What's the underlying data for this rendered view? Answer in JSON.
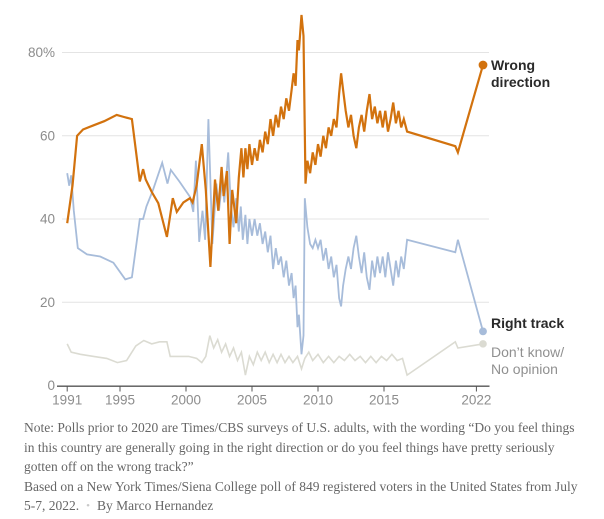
{
  "chart_data": {
    "type": "line",
    "grid": "horizontal",
    "legend_position": "right-end-labels",
    "x_axis": {
      "range": [
        1990.2,
        2023
      ],
      "ticks": [
        1991,
        1995,
        2000,
        2005,
        2010,
        2015,
        2022
      ],
      "tick_labels": [
        "1991",
        "1995",
        "2000",
        "2005",
        "2010",
        "2015",
        "2022"
      ]
    },
    "y_axis": {
      "unit": "%",
      "range": [
        0,
        90
      ],
      "ticks": [
        0,
        20,
        40,
        60,
        80
      ],
      "tick_labels": [
        "0",
        "20",
        "40",
        "60",
        "80%"
      ]
    },
    "series": [
      {
        "name": "Don't know/No opinion",
        "color": "#dbdbd2",
        "end_value": 10,
        "points": [
          [
            1991.0,
            10
          ],
          [
            1991.3,
            8
          ],
          [
            1992.0,
            7.5
          ],
          [
            1993.0,
            7
          ],
          [
            1994.0,
            6.5
          ],
          [
            1994.8,
            5.5
          ],
          [
            1995.5,
            6
          ],
          [
            1996.2,
            9.5
          ],
          [
            1996.8,
            10.8
          ],
          [
            1997.4,
            10
          ],
          [
            1998.0,
            10.5
          ],
          [
            1998.55,
            10.5
          ],
          [
            1998.8,
            7
          ],
          [
            1999.5,
            7
          ],
          [
            2000.2,
            7
          ],
          [
            2000.8,
            6.5
          ],
          [
            2001.2,
            5.5
          ],
          [
            2001.5,
            7
          ],
          [
            2001.8,
            12
          ],
          [
            2002.1,
            9
          ],
          [
            2002.4,
            11
          ],
          [
            2002.7,
            8
          ],
          [
            2003.0,
            10
          ],
          [
            2003.3,
            7
          ],
          [
            2003.6,
            9
          ],
          [
            2003.9,
            6
          ],
          [
            2004.2,
            8
          ],
          [
            2004.5,
            2.5
          ],
          [
            2004.8,
            7
          ],
          [
            2005.1,
            5
          ],
          [
            2005.4,
            8
          ],
          [
            2005.7,
            6
          ],
          [
            2006.0,
            8
          ],
          [
            2006.3,
            5.5
          ],
          [
            2006.6,
            7.5
          ],
          [
            2006.9,
            5.5
          ],
          [
            2007.2,
            7.5
          ],
          [
            2007.5,
            5.5
          ],
          [
            2007.8,
            7
          ],
          [
            2008.1,
            5.5
          ],
          [
            2008.45,
            7
          ],
          [
            2008.75,
            4
          ],
          [
            2009.0,
            6.5
          ],
          [
            2009.3,
            8
          ],
          [
            2009.6,
            6
          ],
          [
            2010.0,
            7.5
          ],
          [
            2010.4,
            5.5
          ],
          [
            2010.8,
            7
          ],
          [
            2011.2,
            5.5
          ],
          [
            2011.6,
            7
          ],
          [
            2012.0,
            6
          ],
          [
            2012.4,
            7.5
          ],
          [
            2012.8,
            6
          ],
          [
            2013.2,
            7
          ],
          [
            2013.6,
            5.5
          ],
          [
            2014.0,
            7
          ],
          [
            2014.4,
            5.5
          ],
          [
            2014.8,
            7
          ],
          [
            2015.2,
            6
          ],
          [
            2015.6,
            7.5
          ],
          [
            2016.0,
            6
          ],
          [
            2016.4,
            6.5
          ],
          [
            2016.75,
            2.5
          ],
          [
            2020.4,
            10.5
          ],
          [
            2020.6,
            9
          ],
          [
            2022.5,
            10
          ]
        ]
      },
      {
        "name": "Right track",
        "color": "#a7bcda",
        "end_value": 13,
        "points": [
          [
            1991.0,
            51
          ],
          [
            1991.15,
            48
          ],
          [
            1991.3,
            50.5
          ],
          [
            1991.5,
            42
          ],
          [
            1991.8,
            33
          ],
          [
            1992.5,
            31.5
          ],
          [
            1993.5,
            31
          ],
          [
            1994.5,
            29.5
          ],
          [
            1995.4,
            25.5
          ],
          [
            1995.9,
            26
          ],
          [
            1996.5,
            40
          ],
          [
            1996.75,
            40
          ],
          [
            1997.0,
            43
          ],
          [
            1997.5,
            47
          ],
          [
            1998.2,
            53.5
          ],
          [
            1998.6,
            48.5
          ],
          [
            1998.85,
            51.8
          ],
          [
            1999.5,
            49
          ],
          [
            2000.3,
            45.3
          ],
          [
            2000.55,
            41.7
          ],
          [
            2000.75,
            54
          ],
          [
            2001.0,
            34.5
          ],
          [
            2001.25,
            42
          ],
          [
            2001.45,
            35
          ],
          [
            2001.7,
            64
          ],
          [
            2002.0,
            34
          ],
          [
            2002.3,
            48.5
          ],
          [
            2002.5,
            42
          ],
          [
            2002.75,
            49.5
          ],
          [
            2002.9,
            44
          ],
          [
            2003.2,
            56
          ],
          [
            2003.4,
            43
          ],
          [
            2003.6,
            38
          ],
          [
            2003.8,
            45
          ],
          [
            2004.0,
            37
          ],
          [
            2004.15,
            43
          ],
          [
            2004.3,
            35
          ],
          [
            2004.5,
            41
          ],
          [
            2004.65,
            34
          ],
          [
            2004.8,
            40
          ],
          [
            2005.0,
            36
          ],
          [
            2005.2,
            40
          ],
          [
            2005.4,
            36
          ],
          [
            2005.6,
            39
          ],
          [
            2005.8,
            34
          ],
          [
            2006.0,
            37
          ],
          [
            2006.2,
            32
          ],
          [
            2006.4,
            36
          ],
          [
            2006.6,
            28
          ],
          [
            2006.8,
            33
          ],
          [
            2007.0,
            29
          ],
          [
            2007.2,
            31
          ],
          [
            2007.4,
            26
          ],
          [
            2007.6,
            30
          ],
          [
            2007.8,
            24
          ],
          [
            2008.0,
            27
          ],
          [
            2008.15,
            21
          ],
          [
            2008.3,
            24
          ],
          [
            2008.45,
            14
          ],
          [
            2008.55,
            17
          ],
          [
            2008.75,
            7.5
          ],
          [
            2008.9,
            12
          ],
          [
            2009.0,
            45
          ],
          [
            2009.2,
            38
          ],
          [
            2009.4,
            34
          ],
          [
            2009.6,
            33
          ],
          [
            2009.8,
            35
          ],
          [
            2010.0,
            33
          ],
          [
            2010.2,
            35
          ],
          [
            2010.4,
            30
          ],
          [
            2010.6,
            33
          ],
          [
            2010.8,
            28
          ],
          [
            2011.0,
            31
          ],
          [
            2011.2,
            26
          ],
          [
            2011.4,
            29
          ],
          [
            2011.6,
            21
          ],
          [
            2011.75,
            19
          ],
          [
            2011.9,
            24
          ],
          [
            2012.1,
            28
          ],
          [
            2012.3,
            31
          ],
          [
            2012.5,
            28
          ],
          [
            2012.7,
            33
          ],
          [
            2012.9,
            36
          ],
          [
            2013.1,
            31
          ],
          [
            2013.3,
            27
          ],
          [
            2013.5,
            32
          ],
          [
            2013.7,
            26
          ],
          [
            2013.9,
            23
          ],
          [
            2014.1,
            30
          ],
          [
            2014.3,
            26
          ],
          [
            2014.5,
            31
          ],
          [
            2014.7,
            27
          ],
          [
            2014.9,
            31
          ],
          [
            2015.1,
            26
          ],
          [
            2015.3,
            32
          ],
          [
            2015.5,
            28
          ],
          [
            2015.7,
            24
          ],
          [
            2015.9,
            30
          ],
          [
            2016.1,
            26
          ],
          [
            2016.3,
            31
          ],
          [
            2016.5,
            28
          ],
          [
            2016.75,
            35
          ],
          [
            2020.4,
            32
          ],
          [
            2020.6,
            35
          ],
          [
            2022.5,
            13
          ]
        ]
      },
      {
        "name": "Wrong direction",
        "color": "#d2720e",
        "end_value": 77,
        "points": [
          [
            1991.0,
            39
          ],
          [
            1991.4,
            48
          ],
          [
            1991.75,
            60
          ],
          [
            1992.2,
            61.5
          ],
          [
            1993.0,
            62.5
          ],
          [
            1993.8,
            63.5
          ],
          [
            1994.75,
            65
          ],
          [
            1995.3,
            64.5
          ],
          [
            1995.9,
            64
          ],
          [
            1996.5,
            49
          ],
          [
            1996.75,
            52
          ],
          [
            1996.95,
            49.5
          ],
          [
            1997.4,
            46.5
          ],
          [
            1997.9,
            43.8
          ],
          [
            1998.55,
            35.7
          ],
          [
            1999.0,
            45
          ],
          [
            1999.3,
            41.7
          ],
          [
            1999.8,
            44
          ],
          [
            2000.3,
            45
          ],
          [
            2000.5,
            44
          ],
          [
            2000.8,
            48
          ],
          [
            2001.2,
            58
          ],
          [
            2001.5,
            47
          ],
          [
            2001.85,
            28.5
          ],
          [
            2002.2,
            49.5
          ],
          [
            2002.45,
            42
          ],
          [
            2002.7,
            52.5
          ],
          [
            2002.85,
            45.5
          ],
          [
            2003.1,
            51.5
          ],
          [
            2003.3,
            34
          ],
          [
            2003.5,
            47
          ],
          [
            2003.65,
            43
          ],
          [
            2003.8,
            39
          ],
          [
            2004.0,
            50
          ],
          [
            2004.2,
            57
          ],
          [
            2004.35,
            50
          ],
          [
            2004.5,
            57
          ],
          [
            2004.65,
            52
          ],
          [
            2004.8,
            58
          ],
          [
            2005.0,
            53
          ],
          [
            2005.2,
            57
          ],
          [
            2005.4,
            54
          ],
          [
            2005.6,
            59
          ],
          [
            2005.8,
            56
          ],
          [
            2006.0,
            61
          ],
          [
            2006.2,
            58
          ],
          [
            2006.4,
            64
          ],
          [
            2006.6,
            60
          ],
          [
            2006.8,
            65
          ],
          [
            2007.0,
            62
          ],
          [
            2007.2,
            67
          ],
          [
            2007.4,
            64
          ],
          [
            2007.6,
            69
          ],
          [
            2007.8,
            66
          ],
          [
            2008.0,
            71
          ],
          [
            2008.15,
            75
          ],
          [
            2008.3,
            72
          ],
          [
            2008.45,
            83
          ],
          [
            2008.55,
            80.5
          ],
          [
            2008.75,
            89
          ],
          [
            2008.9,
            84
          ],
          [
            2009.05,
            48.5
          ],
          [
            2009.2,
            54
          ],
          [
            2009.4,
            51
          ],
          [
            2009.6,
            56
          ],
          [
            2009.8,
            53
          ],
          [
            2010.0,
            58
          ],
          [
            2010.2,
            55
          ],
          [
            2010.4,
            60
          ],
          [
            2010.6,
            57
          ],
          [
            2010.8,
            62
          ],
          [
            2011.0,
            60
          ],
          [
            2011.2,
            64
          ],
          [
            2011.4,
            62
          ],
          [
            2011.6,
            70
          ],
          [
            2011.75,
            75
          ],
          [
            2011.9,
            71
          ],
          [
            2012.1,
            66
          ],
          [
            2012.3,
            62
          ],
          [
            2012.5,
            65
          ],
          [
            2012.7,
            60
          ],
          [
            2012.9,
            57
          ],
          [
            2013.1,
            62
          ],
          [
            2013.3,
            65
          ],
          [
            2013.5,
            61
          ],
          [
            2013.7,
            66
          ],
          [
            2013.9,
            70
          ],
          [
            2014.1,
            64
          ],
          [
            2014.3,
            67
          ],
          [
            2014.5,
            63
          ],
          [
            2014.7,
            66
          ],
          [
            2014.9,
            62
          ],
          [
            2015.1,
            66
          ],
          [
            2015.3,
            61
          ],
          [
            2015.5,
            64
          ],
          [
            2015.7,
            68
          ],
          [
            2015.9,
            63
          ],
          [
            2016.1,
            66
          ],
          [
            2016.3,
            62
          ],
          [
            2016.5,
            64
          ],
          [
            2016.75,
            61
          ],
          [
            2020.4,
            57.5
          ],
          [
            2020.6,
            56
          ],
          [
            2022.5,
            77
          ]
        ]
      }
    ]
  },
  "annotations": {
    "wrong_direction": "Wrong direction",
    "right_track": "Right track",
    "dont_know_line1": "Don’t know/",
    "dont_know_line2": "No opinion"
  },
  "note": {
    "text": "Note: Polls prior to 2020 are Times/CBS surveys of U.S. adults, with the wording “Do you feel things in this country are generally going in the right direction or do you feel things have pretty seriously gotten off on the wrong track?”"
  },
  "byline": {
    "source": "Based on a New York Times/Siena College poll of 849 registered voters in the United States from July 5-7, 2022.",
    "separator": "•",
    "author": "By Marco Hernandez"
  },
  "palette": {
    "wrong_direction": "#d2720e",
    "right_track": "#a7bcda",
    "dont_know": "#dbdbd2",
    "gridline": "#e4e4e4",
    "axis": "#545454",
    "tick_label": "#8c8c8c",
    "label_dark": "#2a2a2a",
    "label_gray": "#909090",
    "note_text": "#666666"
  }
}
